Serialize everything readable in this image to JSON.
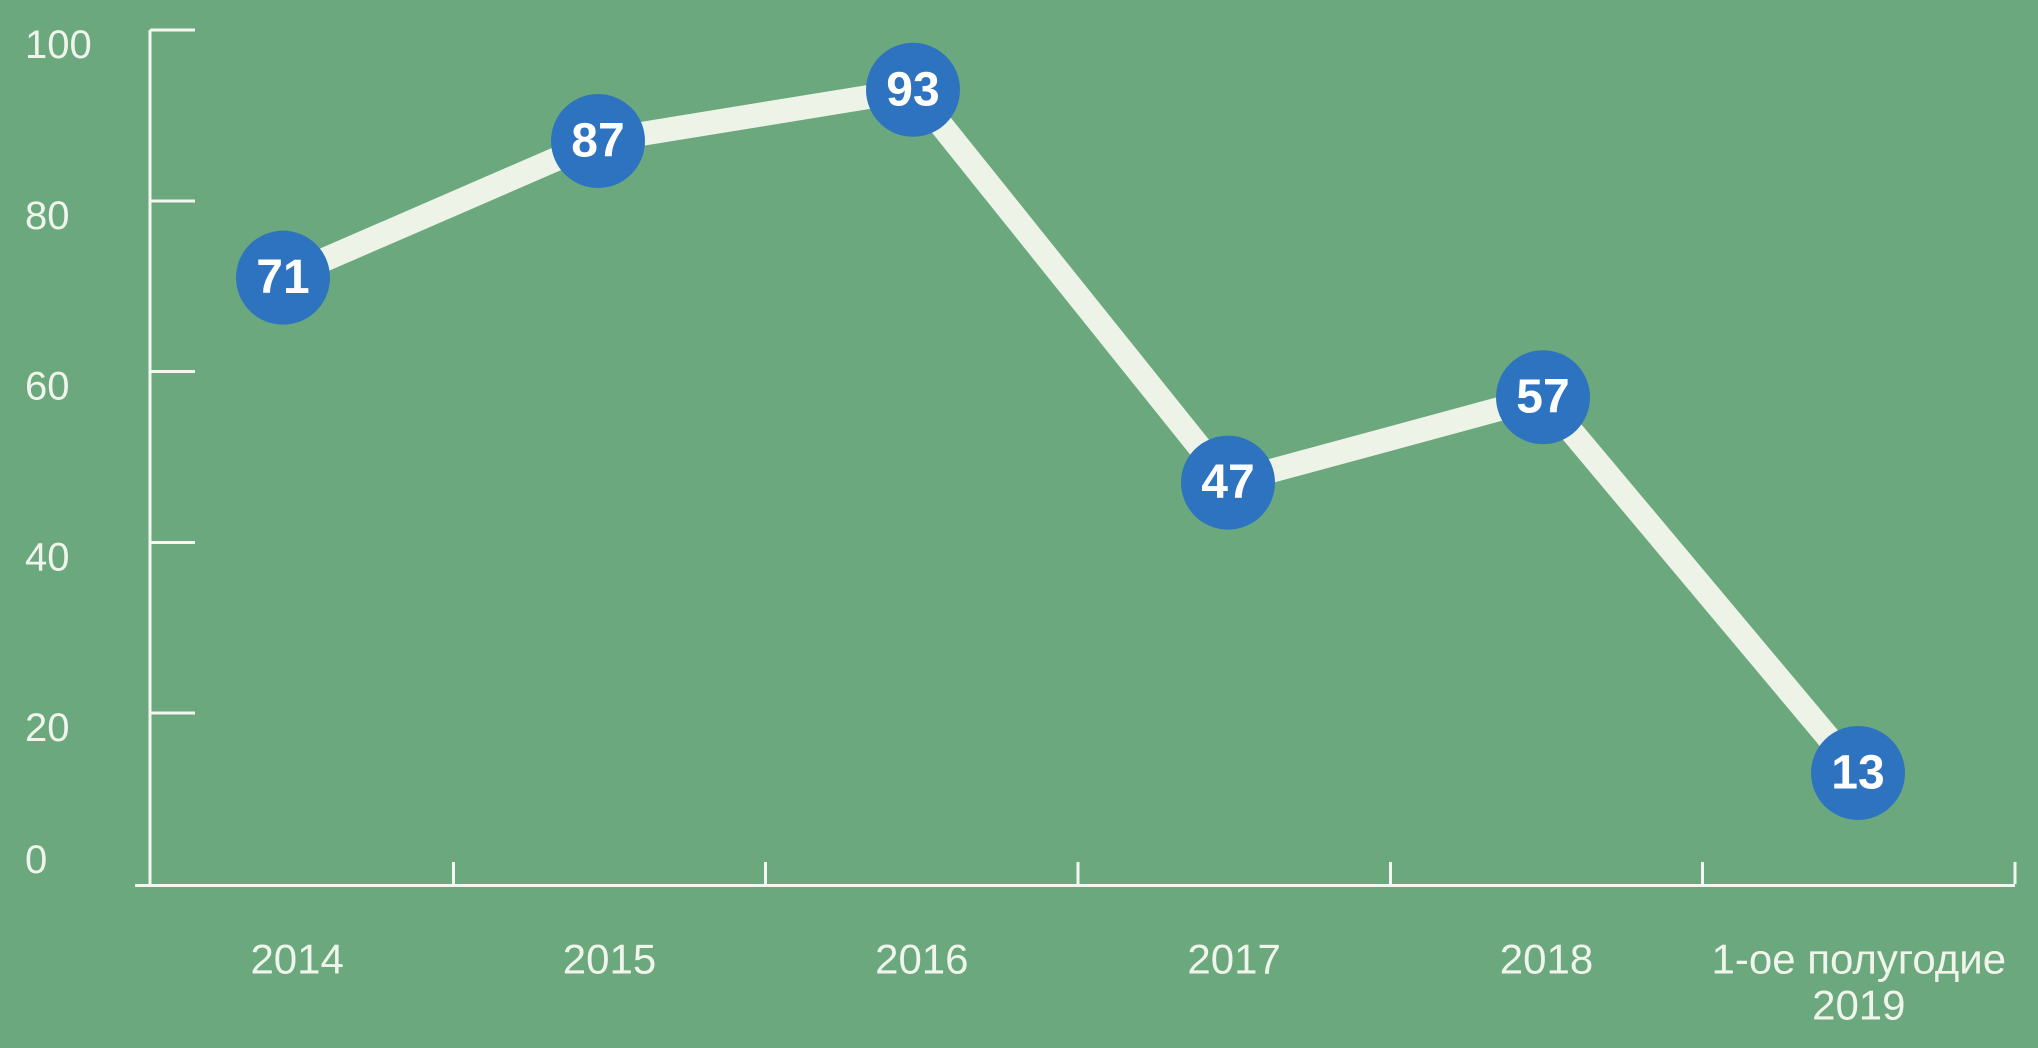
{
  "chart_data": {
    "type": "line",
    "categories": [
      "2014",
      "2015",
      "2016",
      "2017",
      "2018",
      "1-ое полугодие 2019"
    ],
    "category_label_lines": [
      [
        "2014"
      ],
      [
        "2015"
      ],
      [
        "2016"
      ],
      [
        "2017"
      ],
      [
        "2018"
      ],
      [
        "1-ое полугодие",
        "2019"
      ]
    ],
    "values": [
      71,
      87,
      93,
      47,
      57,
      13
    ],
    "point_labels": [
      "71",
      "87",
      "93",
      "47",
      "57",
      "13"
    ],
    "y_ticks": [
      100,
      80,
      60,
      40,
      20,
      0
    ],
    "ylim": [
      0,
      100
    ],
    "grid": false,
    "legend": "none",
    "markers": "circle-with-value",
    "colors": {
      "background": "#6BA87D",
      "line": "#EDF4E7",
      "marker": "#2E73BF",
      "marker_text": "#FFFFFF",
      "axis": "#F3F7EF",
      "tick_label": "#F0F5EC"
    }
  }
}
